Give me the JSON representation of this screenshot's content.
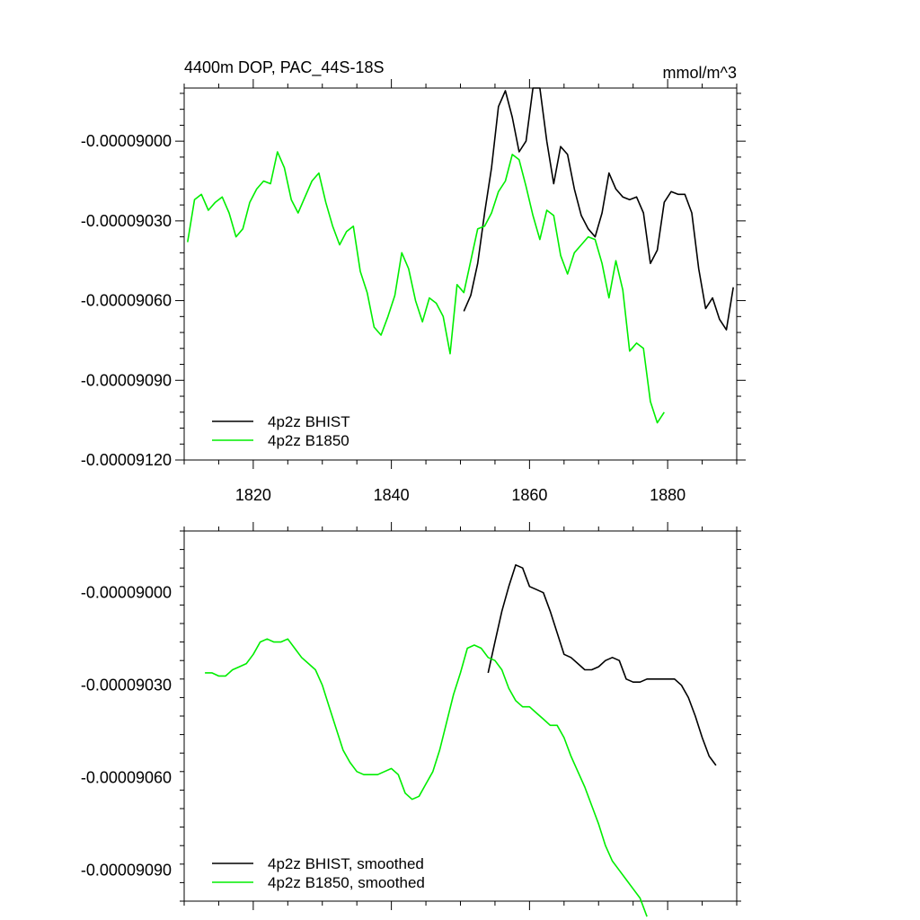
{
  "figure": {
    "title_left": "4400m DOP, PAC_44S-18S",
    "title_right": "mmol/m^3"
  },
  "chart_data": [
    {
      "type": "line",
      "title": "4400m DOP, PAC_44S-18S",
      "units": "mmol/m^3",
      "xlim": [
        1810,
        1890
      ],
      "ylim": [
        -9.12e-05,
        -8.98e-05
      ],
      "x_ticks": [
        1820,
        1840,
        1860,
        1880
      ],
      "x_tick_labels": [
        "1820",
        "1840",
        "1860",
        "1880"
      ],
      "y_ticks": [
        -9.12e-05,
        -9.09e-05,
        -9.06e-05,
        -9.03e-05,
        -9e-05
      ],
      "y_tick_labels": [
        "-0.00009120",
        "-0.00009090",
        "-0.00009060",
        "-0.00009030",
        "-0.00009000"
      ],
      "legend_position": "bottom-left",
      "series": [
        {
          "name": "4p2z BHIST",
          "color": "#000000",
          "x": [
            1850.5,
            1851.5,
            1852.5,
            1853.5,
            1854.5,
            1855.5,
            1856.5,
            1857.5,
            1858.5,
            1859.5,
            1860.5,
            1861.5,
            1862.5,
            1863.5,
            1864.5,
            1865.5,
            1866.5,
            1867.5,
            1868.5,
            1869.5,
            1870.5,
            1871.5,
            1872.5,
            1873.5,
            1874.5,
            1875.5,
            1876.5,
            1877.5,
            1878.5,
            1879.5,
            1880.5,
            1881.5,
            1882.5,
            1883.5,
            1884.5,
            1885.5,
            1886.5,
            1887.5,
            1888.5,
            1889.5
          ],
          "values": [
            -9.064e-05,
            -9.058e-05,
            -9.046e-05,
            -9.027e-05,
            -9.01e-05,
            -8.987e-05,
            -8.981e-05,
            -8.991e-05,
            -9.004e-05,
            -9e-05,
            -8.98e-05,
            -8.98e-05,
            -9e-05,
            -9.016e-05,
            -9.002e-05,
            -9.005e-05,
            -9.018e-05,
            -9.028e-05,
            -9.033e-05,
            -9.036e-05,
            -9.027e-05,
            -9.012e-05,
            -9.018e-05,
            -9.021e-05,
            -9.022e-05,
            -9.021e-05,
            -9.027e-05,
            -9.046e-05,
            -9.041e-05,
            -9.023e-05,
            -9.019e-05,
            -9.02e-05,
            -9.02e-05,
            -9.027e-05,
            -9.048e-05,
            -9.063e-05,
            -9.059e-05,
            -9.067e-05,
            -9.071e-05,
            -9.055e-05
          ]
        },
        {
          "name": "4p2z B1850",
          "color": "#00ee00",
          "x": [
            1810.5,
            1811.5,
            1812.5,
            1813.5,
            1814.5,
            1815.5,
            1816.5,
            1817.5,
            1818.5,
            1819.5,
            1820.5,
            1821.5,
            1822.5,
            1823.5,
            1824.5,
            1825.5,
            1826.5,
            1827.5,
            1828.5,
            1829.5,
            1830.5,
            1831.5,
            1832.5,
            1833.5,
            1834.5,
            1835.5,
            1836.5,
            1837.5,
            1838.5,
            1839.5,
            1840.5,
            1841.5,
            1842.5,
            1843.5,
            1844.5,
            1845.5,
            1846.5,
            1847.5,
            1848.5,
            1849.5,
            1850.5,
            1851.5,
            1852.5,
            1853.5,
            1854.5,
            1855.5,
            1856.5,
            1857.5,
            1858.5,
            1859.5,
            1860.5,
            1861.5,
            1862.5,
            1863.5,
            1864.5,
            1865.5,
            1866.5,
            1867.5,
            1868.5,
            1869.5,
            1870.5,
            1871.5,
            1872.5,
            1873.5,
            1874.5,
            1875.5,
            1876.5,
            1877.5,
            1878.5,
            1879.5
          ],
          "values": [
            -9.038e-05,
            -9.022e-05,
            -9.02e-05,
            -9.026e-05,
            -9.023e-05,
            -9.021e-05,
            -9.027e-05,
            -9.036e-05,
            -9.033e-05,
            -9.023e-05,
            -9.018e-05,
            -9.015e-05,
            -9.016e-05,
            -9.004e-05,
            -9.01e-05,
            -9.022e-05,
            -9.027e-05,
            -9.021e-05,
            -9.015e-05,
            -9.012e-05,
            -9.023e-05,
            -9.032e-05,
            -9.039e-05,
            -9.034e-05,
            -9.032e-05,
            -9.049e-05,
            -9.057e-05,
            -9.07e-05,
            -9.073e-05,
            -9.066e-05,
            -9.058e-05,
            -9.042e-05,
            -9.048e-05,
            -9.06e-05,
            -9.068e-05,
            -9.059e-05,
            -9.061e-05,
            -9.066e-05,
            -9.08e-05,
            -9.054e-05,
            -9.057e-05,
            -9.045e-05,
            -9.033e-05,
            -9.032e-05,
            -9.027e-05,
            -9.019e-05,
            -9.015e-05,
            -9.005e-05,
            -9.007e-05,
            -9.017e-05,
            -9.028e-05,
            -9.037e-05,
            -9.026e-05,
            -9.028e-05,
            -9.043e-05,
            -9.05e-05,
            -9.042e-05,
            -9.039e-05,
            -9.036e-05,
            -9.037e-05,
            -9.046e-05,
            -9.059e-05,
            -9.045e-05,
            -9.056e-05,
            -9.079e-05,
            -9.076e-05,
            -9.078e-05,
            -9.098e-05,
            -9.106e-05,
            -9.102e-05
          ]
        }
      ]
    },
    {
      "type": "line",
      "xlim": [
        1810,
        1890
      ],
      "ylim": [
        -9.1e-05,
        -8.98e-05
      ],
      "x_ticks": [
        1820,
        1840,
        1860,
        1880
      ],
      "y_ticks": [
        -9.09e-05,
        -9.06e-05,
        -9.03e-05,
        -9e-05
      ],
      "y_tick_labels": [
        "-0.00009090",
        "-0.00009060",
        "-0.00009030",
        "-0.00009000"
      ],
      "legend_position": "bottom-left",
      "series": [
        {
          "name": "4p2z BHIST, smoothed",
          "color": "#000000",
          "x": [
            1854,
            1855,
            1856,
            1857,
            1858,
            1859,
            1860,
            1861,
            1862,
            1863,
            1864,
            1865,
            1866,
            1867,
            1868,
            1869,
            1870,
            1871,
            1872,
            1873,
            1874,
            1875,
            1876,
            1877,
            1878,
            1879,
            1880,
            1881,
            1882,
            1883,
            1884,
            1885,
            1886,
            1887
          ],
          "values": [
            -9.026e-05,
            -9.016e-05,
            -9.006e-05,
            -8.998e-05,
            -8.991e-05,
            -8.992e-05,
            -8.998e-05,
            -8.999e-05,
            -9e-05,
            -9.006e-05,
            -9.013e-05,
            -9.02e-05,
            -9.021e-05,
            -9.023e-05,
            -9.025e-05,
            -9.025e-05,
            -9.024e-05,
            -9.022e-05,
            -9.021e-05,
            -9.022e-05,
            -9.028e-05,
            -9.029e-05,
            -9.029e-05,
            -9.028e-05,
            -9.028e-05,
            -9.028e-05,
            -9.028e-05,
            -9.028e-05,
            -9.03e-05,
            -9.034e-05,
            -9.04e-05,
            -9.047e-05,
            -9.053e-05,
            -9.056e-05
          ]
        },
        {
          "name": "4p2z B1850, smoothed",
          "color": "#00ee00",
          "x": [
            1813,
            1814,
            1815,
            1816,
            1817,
            1818,
            1819,
            1820,
            1821,
            1822,
            1823,
            1824,
            1825,
            1826,
            1827,
            1828,
            1829,
            1830,
            1831,
            1832,
            1833,
            1834,
            1835,
            1836,
            1837,
            1838,
            1839,
            1840,
            1841,
            1842,
            1843,
            1844,
            1845,
            1846,
            1847,
            1848,
            1849,
            1850,
            1851,
            1852,
            1853,
            1854,
            1855,
            1856,
            1857,
            1858,
            1859,
            1860,
            1861,
            1862,
            1863,
            1864,
            1865,
            1866,
            1867,
            1868,
            1869,
            1870,
            1871,
            1872,
            1873,
            1874,
            1875,
            1876,
            1877
          ],
          "values": [
            -9.026e-05,
            -9.026e-05,
            -9.027e-05,
            -9.027e-05,
            -9.025e-05,
            -9.024e-05,
            -9.023e-05,
            -9.02e-05,
            -9.016e-05,
            -9.015e-05,
            -9.016e-05,
            -9.016e-05,
            -9.015e-05,
            -9.018e-05,
            -9.021e-05,
            -9.023e-05,
            -9.025e-05,
            -9.03e-05,
            -9.037e-05,
            -9.044e-05,
            -9.051e-05,
            -9.055e-05,
            -9.058e-05,
            -9.059e-05,
            -9.059e-05,
            -9.059e-05,
            -9.058e-05,
            -9.057e-05,
            -9.059e-05,
            -9.065e-05,
            -9.067e-05,
            -9.066e-05,
            -9.062e-05,
            -9.058e-05,
            -9.051e-05,
            -9.042e-05,
            -9.033e-05,
            -9.026e-05,
            -9.018e-05,
            -9.017e-05,
            -9.018e-05,
            -9.021e-05,
            -9.022e-05,
            -9.025e-05,
            -9.031e-05,
            -9.035e-05,
            -9.037e-05,
            -9.037e-05,
            -9.039e-05,
            -9.041e-05,
            -9.043e-05,
            -9.043e-05,
            -9.047e-05,
            -9.053e-05,
            -9.058e-05,
            -9.063e-05,
            -9.069e-05,
            -9.075e-05,
            -9.082e-05,
            -9.087e-05,
            -9.09e-05,
            -9.093e-05,
            -9.096e-05,
            -9.099e-05,
            -9.105e-05
          ]
        }
      ]
    }
  ]
}
